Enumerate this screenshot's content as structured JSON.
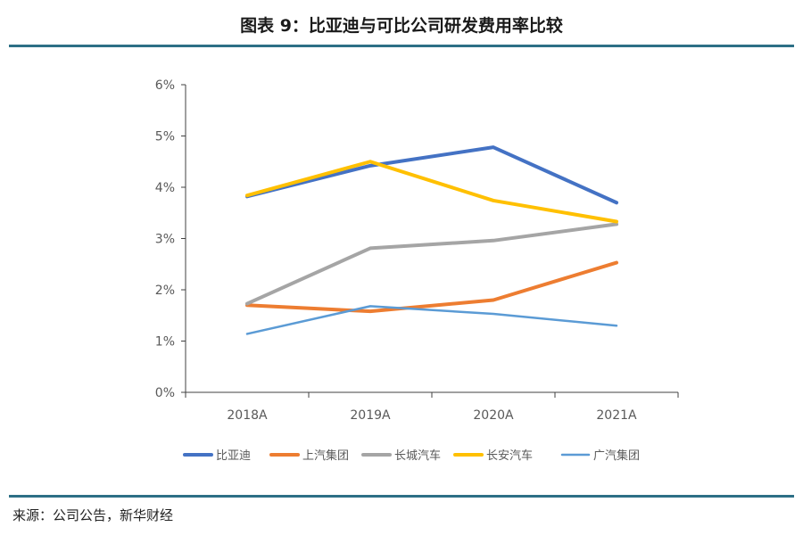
{
  "header": {
    "title": "图表 9：比亚迪与可比公司研发费用率比较"
  },
  "footer": {
    "source": "来源：公司公告，新华财经"
  },
  "chart_data": {
    "type": "line",
    "title": "",
    "xlabel": "",
    "ylabel": "",
    "categories": [
      "2018A",
      "2019A",
      "2020A",
      "2021A"
    ],
    "ylim": [
      0,
      6
    ],
    "y_unit": "%",
    "y_ticks": [
      "0%",
      "1%",
      "2%",
      "3%",
      "4%",
      "5%",
      "6%"
    ],
    "grid": false,
    "legend_position": "bottom",
    "series": [
      {
        "name": "比亚迪",
        "values": [
          3.82,
          4.42,
          4.78,
          3.7
        ],
        "color": "#4472C4"
      },
      {
        "name": "上汽集团",
        "values": [
          1.7,
          1.58,
          1.8,
          2.53
        ],
        "color": "#ED7D31"
      },
      {
        "name": "长城汽车",
        "values": [
          1.73,
          2.81,
          2.96,
          3.28
        ],
        "color": "#A5A5A5"
      },
      {
        "name": "长安汽车",
        "values": [
          3.84,
          4.5,
          3.74,
          3.33
        ],
        "color": "#FFC000"
      },
      {
        "name": "广汽集团",
        "values": [
          1.14,
          1.68,
          1.53,
          1.3
        ],
        "color": "#5B9BD5"
      }
    ]
  }
}
